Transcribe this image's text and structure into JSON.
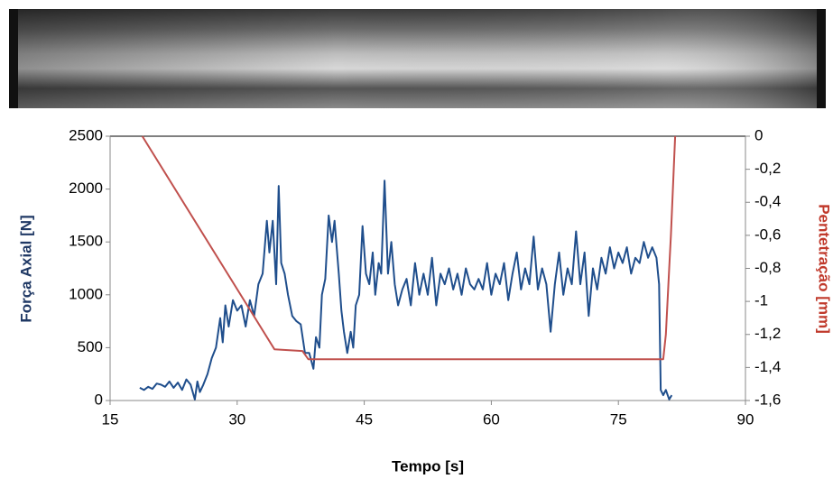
{
  "chart_data": {
    "type": "line",
    "xlabel": "Tempo [s]",
    "ylabel": "Força Axial [N]",
    "y2label": "Pentetração [mm]",
    "xlim": [
      15,
      90
    ],
    "xticks": [
      15,
      30,
      45,
      60,
      75,
      90
    ],
    "ylim": [
      0,
      2500
    ],
    "yticks": [
      0,
      500,
      1000,
      1500,
      2000,
      2500
    ],
    "y2lim": [
      -1.6,
      0
    ],
    "y2ticks": [
      {
        "value": -1.6,
        "label": "-1,6"
      },
      {
        "value": -1.4,
        "label": "-1,4"
      },
      {
        "value": -1.2,
        "label": "-1,2"
      },
      -1,
      {
        "value": -0.8,
        "label": "-0,8"
      },
      {
        "value": -0.6,
        "label": "-0,6"
      },
      {
        "value": -0.4,
        "label": "-0,4"
      },
      {
        "value": -0.2,
        "label": "-0,2"
      },
      0
    ],
    "series": [
      {
        "color": "#1f4e8c",
        "axis": "y",
        "x": [
          18.5,
          19,
          19.5,
          20,
          20.5,
          21,
          21.5,
          22,
          22.5,
          23,
          23.5,
          24,
          24.5,
          25,
          25.3,
          25.6,
          26,
          26.5,
          27,
          27.5,
          28,
          28.3,
          28.6,
          29,
          29.5,
          30,
          30.5,
          31,
          31.5,
          32,
          32.5,
          33,
          33.5,
          33.8,
          34.2,
          34.6,
          34.9,
          35.2,
          35.6,
          36,
          36.5,
          37,
          37.5,
          38,
          38.5,
          39,
          39.3,
          39.7,
          40,
          40.4,
          40.8,
          41.2,
          41.5,
          42,
          42.3,
          42.6,
          43,
          43.4,
          43.7,
          44,
          44.4,
          44.8,
          45.2,
          45.6,
          46,
          46.3,
          46.7,
          47,
          47.4,
          47.8,
          48.2,
          48.6,
          49,
          49.5,
          50,
          50.5,
          51,
          51.5,
          52,
          52.5,
          53,
          53.5,
          54,
          54.5,
          55,
          55.5,
          56,
          56.5,
          57,
          57.5,
          58,
          58.5,
          59,
          59.5,
          60,
          60.5,
          61,
          61.5,
          62,
          62.5,
          63,
          63.5,
          64,
          64.5,
          65,
          65.5,
          66,
          66.5,
          67,
          67.5,
          68,
          68.5,
          69,
          69.5,
          70,
          70.5,
          71,
          71.5,
          72,
          72.5,
          73,
          73.5,
          74,
          74.5,
          75,
          75.5,
          76,
          76.5,
          77,
          77.5,
          78,
          78.5,
          79,
          79.5,
          79.8,
          80,
          80.3,
          80.6,
          81,
          81.3
        ],
        "values": [
          120,
          100,
          130,
          110,
          160,
          150,
          130,
          180,
          120,
          170,
          100,
          200,
          150,
          10,
          180,
          80,
          150,
          250,
          400,
          500,
          780,
          550,
          900,
          700,
          950,
          850,
          900,
          700,
          950,
          800,
          1100,
          1200,
          1700,
          1400,
          1700,
          1100,
          2030,
          1300,
          1200,
          1000,
          800,
          750,
          720,
          450,
          450,
          300,
          600,
          500,
          1000,
          1150,
          1750,
          1500,
          1700,
          1200,
          850,
          650,
          450,
          650,
          500,
          900,
          1000,
          1650,
          1200,
          1100,
          1400,
          1000,
          1300,
          1200,
          2080,
          1200,
          1500,
          1100,
          900,
          1050,
          1150,
          900,
          1300,
          1000,
          1200,
          1000,
          1350,
          900,
          1200,
          1100,
          1250,
          1050,
          1200,
          1000,
          1250,
          1100,
          1050,
          1150,
          1050,
          1300,
          1000,
          1200,
          1100,
          1300,
          950,
          1200,
          1400,
          1050,
          1250,
          1100,
          1550,
          1050,
          1250,
          1100,
          650,
          1100,
          1400,
          1000,
          1250,
          1100,
          1600,
          1100,
          1400,
          800,
          1250,
          1050,
          1350,
          1200,
          1450,
          1250,
          1400,
          1300,
          1450,
          1200,
          1350,
          1300,
          1500,
          1350,
          1450,
          1350,
          1100,
          100,
          50,
          100,
          10,
          50
        ]
      },
      {
        "color": "#c0504d",
        "axis": "y2",
        "x": [
          18.8,
          34.4,
          37.7,
          38.4,
          80.3,
          80.6,
          81.0,
          81.2,
          81.7
        ],
        "values": [
          0,
          -1.29,
          -1.3,
          -1.35,
          -1.35,
          -1.2,
          -0.8,
          -0.6,
          0
        ]
      }
    ]
  }
}
